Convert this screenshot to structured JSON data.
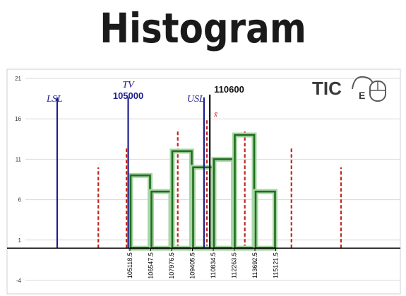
{
  "title": "Histogram",
  "logo": {
    "text": "TIC",
    "sub": "E"
  },
  "colors": {
    "bars_stroke": "#1e6e1e",
    "bars_glow": "#a9d6a5",
    "spec_lines": "#1f1f8f",
    "mean_line": "#111111",
    "dashed_lines": "#c0281e",
    "grid": "#d9d9d9"
  },
  "chart_data": {
    "type": "bar",
    "title": "Histogram",
    "xlabel": "",
    "ylabel": "",
    "ylim": [
      -4,
      21
    ],
    "yticks": [
      21,
      16,
      11,
      6,
      1,
      -4
    ],
    "grid": true,
    "bin_edges": [
      "105118.5",
      "106547.5",
      "107976.5",
      "109405.5",
      "110834.5",
      "112263.5",
      "113692.5",
      "115121.5"
    ],
    "series": [
      {
        "values": [
          9,
          7,
          12,
          10,
          11,
          14,
          7
        ]
      }
    ],
    "baseline": 0,
    "vertical_lines": [
      {
        "label": "LSL",
        "value_label": "",
        "x": 101500,
        "height": 19,
        "kind": "spec"
      },
      {
        "label": "TV",
        "value_label": "105000",
        "x": 105000,
        "height": 19,
        "kind": "spec"
      },
      {
        "label": "USL",
        "value_label": "",
        "x": 110200,
        "height": 19,
        "kind": "spec"
      },
      {
        "label": "x̄",
        "value_label": "110600",
        "x": 110600,
        "height": 19,
        "kind": "mean"
      }
    ],
    "dashed_lines": [
      {
        "x": 102950,
        "height": 10
      },
      {
        "x": 104880,
        "height": 12.5
      },
      {
        "x": 108400,
        "height": 14.5
      },
      {
        "x": 110400,
        "height": 16
      },
      {
        "x": 113000,
        "height": 14.5
      },
      {
        "x": 116200,
        "height": 12.5
      },
      {
        "x": 119600,
        "height": 10
      }
    ]
  }
}
